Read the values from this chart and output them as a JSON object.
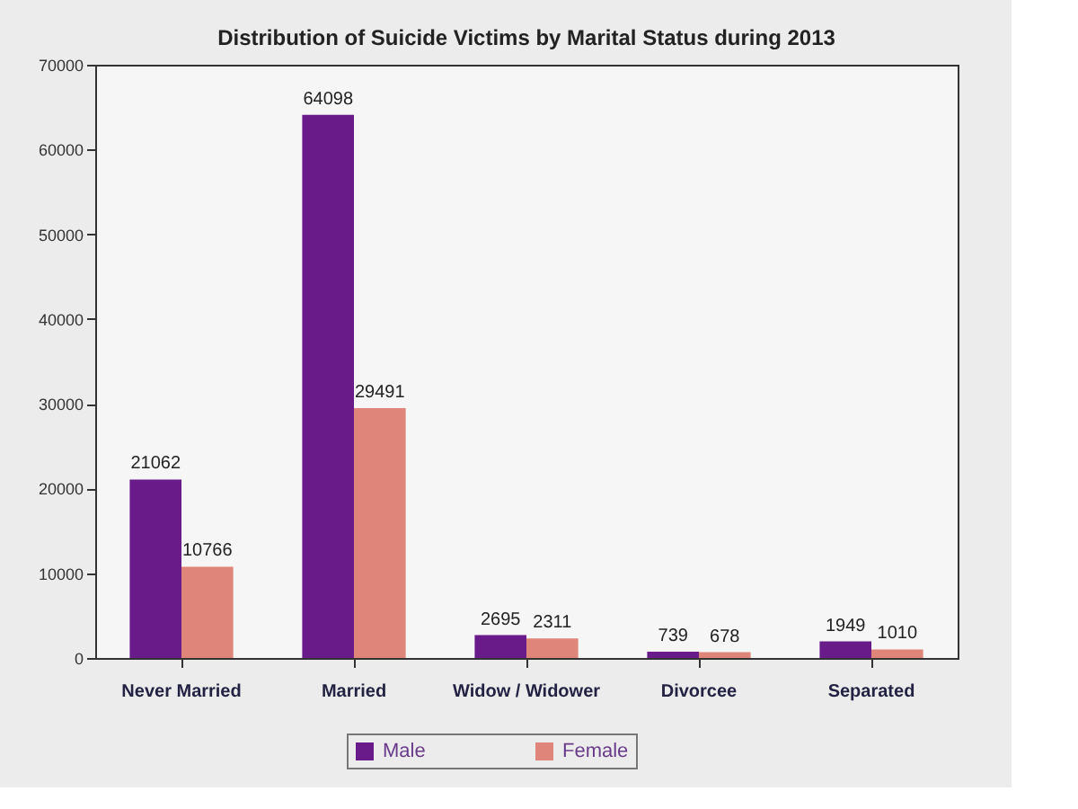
{
  "chart_data": {
    "type": "bar",
    "title": "Distribution of Suicide Victims by Marital Status during 2013",
    "categories": [
      "Never Married",
      "Married",
      "Widow / Widower",
      "Divorcee",
      "Separated"
    ],
    "series": [
      {
        "name": "Male",
        "color": "#6a1b8a",
        "values": [
          21062,
          64098,
          2695,
          739,
          1949
        ]
      },
      {
        "name": "Female",
        "color": "#e0857a",
        "values": [
          10766,
          29491,
          2311,
          678,
          1010
        ]
      }
    ],
    "ylim": [
      0,
      70000
    ],
    "yticks": [
      0,
      10000,
      20000,
      30000,
      40000,
      50000,
      60000,
      70000
    ],
    "grid": false,
    "legend": "bottom",
    "data_labels": true
  }
}
